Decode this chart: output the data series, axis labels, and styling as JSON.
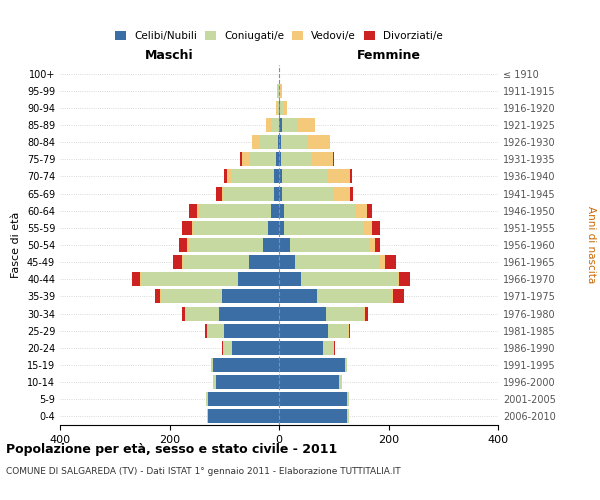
{
  "age_groups": [
    "0-4",
    "5-9",
    "10-14",
    "15-19",
    "20-24",
    "25-29",
    "30-34",
    "35-39",
    "40-44",
    "45-49",
    "50-54",
    "55-59",
    "60-64",
    "65-69",
    "70-74",
    "75-79",
    "80-84",
    "85-89",
    "90-94",
    "95-99",
    "100+"
  ],
  "birth_years": [
    "2006-2010",
    "2001-2005",
    "1996-2000",
    "1991-1995",
    "1986-1990",
    "1981-1985",
    "1976-1980",
    "1971-1975",
    "1966-1970",
    "1961-1965",
    "1956-1960",
    "1951-1955",
    "1946-1950",
    "1941-1945",
    "1936-1940",
    "1931-1935",
    "1926-1930",
    "1921-1925",
    "1916-1920",
    "1911-1915",
    "≤ 1910"
  ],
  "males": {
    "celibi": [
      130,
      130,
      115,
      120,
      85,
      100,
      110,
      105,
      75,
      55,
      30,
      20,
      15,
      10,
      10,
      5,
      2,
      0,
      0,
      0,
      0
    ],
    "coniugati": [
      2,
      3,
      5,
      5,
      15,
      30,
      60,
      110,
      175,
      120,
      135,
      135,
      130,
      90,
      75,
      50,
      35,
      15,
      3,
      2,
      0
    ],
    "vedovi": [
      0,
      0,
      0,
      0,
      2,
      2,
      2,
      2,
      3,
      3,
      3,
      3,
      5,
      5,
      10,
      12,
      12,
      8,
      3,
      1,
      0
    ],
    "divorziati": [
      0,
      0,
      0,
      0,
      2,
      3,
      5,
      10,
      15,
      15,
      15,
      20,
      15,
      10,
      5,
      5,
      0,
      0,
      0,
      0,
      0
    ]
  },
  "females": {
    "nubili": [
      125,
      125,
      110,
      120,
      80,
      90,
      85,
      70,
      40,
      30,
      20,
      10,
      10,
      5,
      5,
      3,
      3,
      5,
      2,
      0,
      0
    ],
    "coniugate": [
      2,
      3,
      5,
      5,
      20,
      35,
      70,
      135,
      175,
      155,
      145,
      145,
      130,
      95,
      85,
      55,
      50,
      30,
      5,
      2,
      0
    ],
    "vedove": [
      0,
      0,
      0,
      0,
      1,
      2,
      2,
      3,
      5,
      8,
      10,
      15,
      20,
      30,
      40,
      40,
      40,
      30,
      8,
      3,
      0
    ],
    "divorziate": [
      0,
      0,
      0,
      0,
      2,
      3,
      5,
      20,
      20,
      20,
      10,
      15,
      10,
      5,
      3,
      3,
      0,
      0,
      0,
      0,
      0
    ]
  },
  "colors": {
    "celibi": "#3a6ea5",
    "coniugati": "#c5d9a0",
    "vedovi": "#f5c97a",
    "divorziati": "#cc2222"
  },
  "xlim": 400,
  "title": "Popolazione per età, sesso e stato civile - 2011",
  "subtitle": "COMUNE DI SALGAREDA (TV) - Dati ISTAT 1° gennaio 2011 - Elaborazione TUTTITALIA.IT",
  "ylabel_left": "Fasce di età",
  "ylabel_right": "Anni di nascita",
  "xlabel_left": "Maschi",
  "xlabel_right": "Femmine",
  "background_color": "#ffffff",
  "grid_color": "#cccccc",
  "anni_color": "#cc6600"
}
